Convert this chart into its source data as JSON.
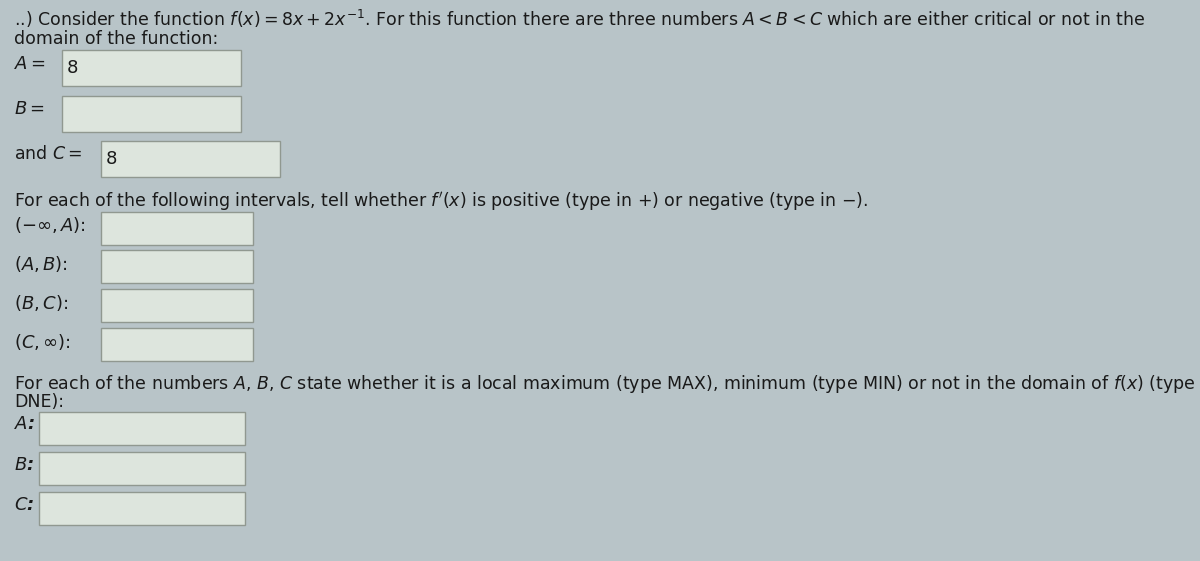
{
  "background_color": "#b8c4c8",
  "box_color": "#dde5dd",
  "box_border": "#909890",
  "text_color": "#1a1a1a",
  "title_line1": "..) Consider the function $f(x) = 8x + 2x^{-1}$. For this function there are three numbers $A < B < C$ which are either critical or not in the",
  "title_line2": "domain of the function:",
  "label_A": "$A = $",
  "value_A": "8",
  "label_B": "$B = $",
  "value_B": "",
  "label_C": "and $C = $",
  "value_C": "8",
  "interval_text": "For each of the following intervals, tell whether $f'(x)$ is positive (type in $+$) or negative (type in $-$).",
  "interval1": "$(-\\infty, A)$:",
  "interval2": "$(A, B)$:",
  "interval3": "$(B, C)$:",
  "interval4": "$(C, \\infty)$:",
  "final_text1": "For each of the numbers $A$, $B$, $C$ state whether it is a local maximum (type MAX), minimum (type MIN) or not in the domain of $f(x)$ (type",
  "final_text2": "DNE):",
  "label_Af": "$A$:",
  "label_Bf": "$B$:",
  "label_Cf": "$C$:",
  "font_size": 13,
  "small_font_size": 12.5,
  "figwidth": 12.0,
  "figheight": 5.61
}
